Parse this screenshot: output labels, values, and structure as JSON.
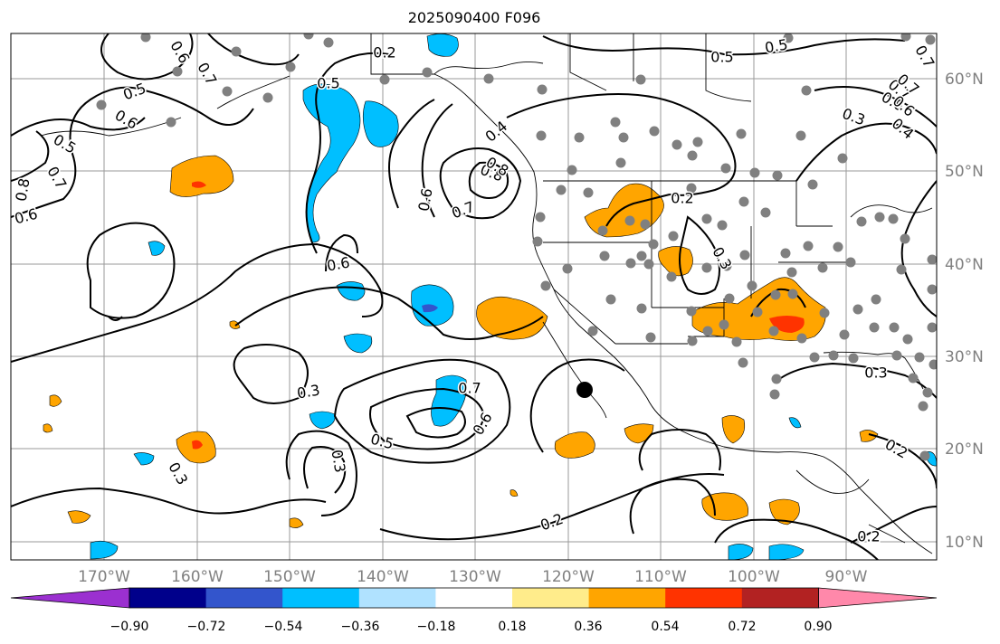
{
  "title": "2025090400 F096",
  "map": {
    "lon_labels": [
      "170°W",
      "160°W",
      "150°W",
      "140°W",
      "130°W",
      "120°W",
      "110°W",
      "100°W",
      "90°W"
    ],
    "lat_labels": [
      "60°N",
      "50°N",
      "40°N",
      "30°N",
      "20°N",
      "10°N"
    ],
    "contour_labels": [
      "0.2",
      "0.5",
      "0.6",
      "0.7",
      "0.6",
      "0.8",
      "0.7",
      "0.5",
      "0.6",
      "0.7",
      "0.8",
      "0.6",
      "0.5",
      "0.5",
      "0.3",
      "0.4",
      "0.8",
      "0.6",
      "0.7",
      "0.6",
      "0.2",
      "0.3",
      "0.3",
      "0.6",
      "0.7",
      "0.5",
      "0.5",
      "0.3",
      "0.3",
      "0.2",
      "0.2",
      "0.2",
      "0.7",
      "0.6",
      "0.7",
      "0.4",
      "0.3"
    ],
    "colors": {
      "ocean": "#ffffff",
      "contour": "#000000",
      "grid": "#9a9a9a",
      "station_marker": "#808080",
      "center_marker": "#000000"
    }
  },
  "colorbar": {
    "ticks": [
      "−0.90",
      "−0.72",
      "−0.54",
      "−0.36",
      "−0.18",
      "0.18",
      "0.36",
      "0.54",
      "0.72",
      "0.90"
    ],
    "colors": [
      "#9b30d0",
      "#00008b",
      "#3355cc",
      "#00bfff",
      "#b0e2ff",
      "#ffffff",
      "#ffec8b",
      "#ffa500",
      "#ff3300",
      "#b22222",
      "#ff88aa",
      "#ff88aa"
    ]
  }
}
